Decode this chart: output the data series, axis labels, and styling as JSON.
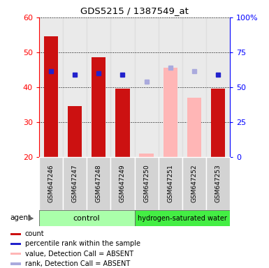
{
  "title": "GDS5215 / 1387549_at",
  "samples": [
    "GSM647246",
    "GSM647247",
    "GSM647248",
    "GSM647249",
    "GSM647250",
    "GSM647251",
    "GSM647252",
    "GSM647253"
  ],
  "count_values": [
    54.5,
    34.5,
    48.5,
    39.5,
    null,
    null,
    null,
    39.5
  ],
  "count_absent_values": [
    null,
    null,
    null,
    null,
    21.0,
    45.5,
    37.0,
    null
  ],
  "percentile_values": [
    44.5,
    43.5,
    44.0,
    43.5,
    null,
    null,
    null,
    43.5
  ],
  "percentile_absent_values": [
    null,
    null,
    null,
    null,
    41.5,
    45.5,
    44.5,
    null
  ],
  "ylim_left": [
    20,
    60
  ],
  "ylim_right": [
    0,
    100
  ],
  "bar_width": 0.6,
  "count_color": "#CC1111",
  "count_absent_color": "#FFB6B6",
  "percentile_color": "#2222CC",
  "percentile_absent_color": "#AAAADD",
  "ctrl_color": "#AAFFAA",
  "hyd_color": "#44EE44",
  "label_bg": "#D3D3D3",
  "legend_items": [
    {
      "label": "count",
      "color": "#CC1111"
    },
    {
      "label": "percentile rank within the sample",
      "color": "#2222CC"
    },
    {
      "label": "value, Detection Call = ABSENT",
      "color": "#FFB6B6"
    },
    {
      "label": "rank, Detection Call = ABSENT",
      "color": "#AAAADD"
    }
  ]
}
